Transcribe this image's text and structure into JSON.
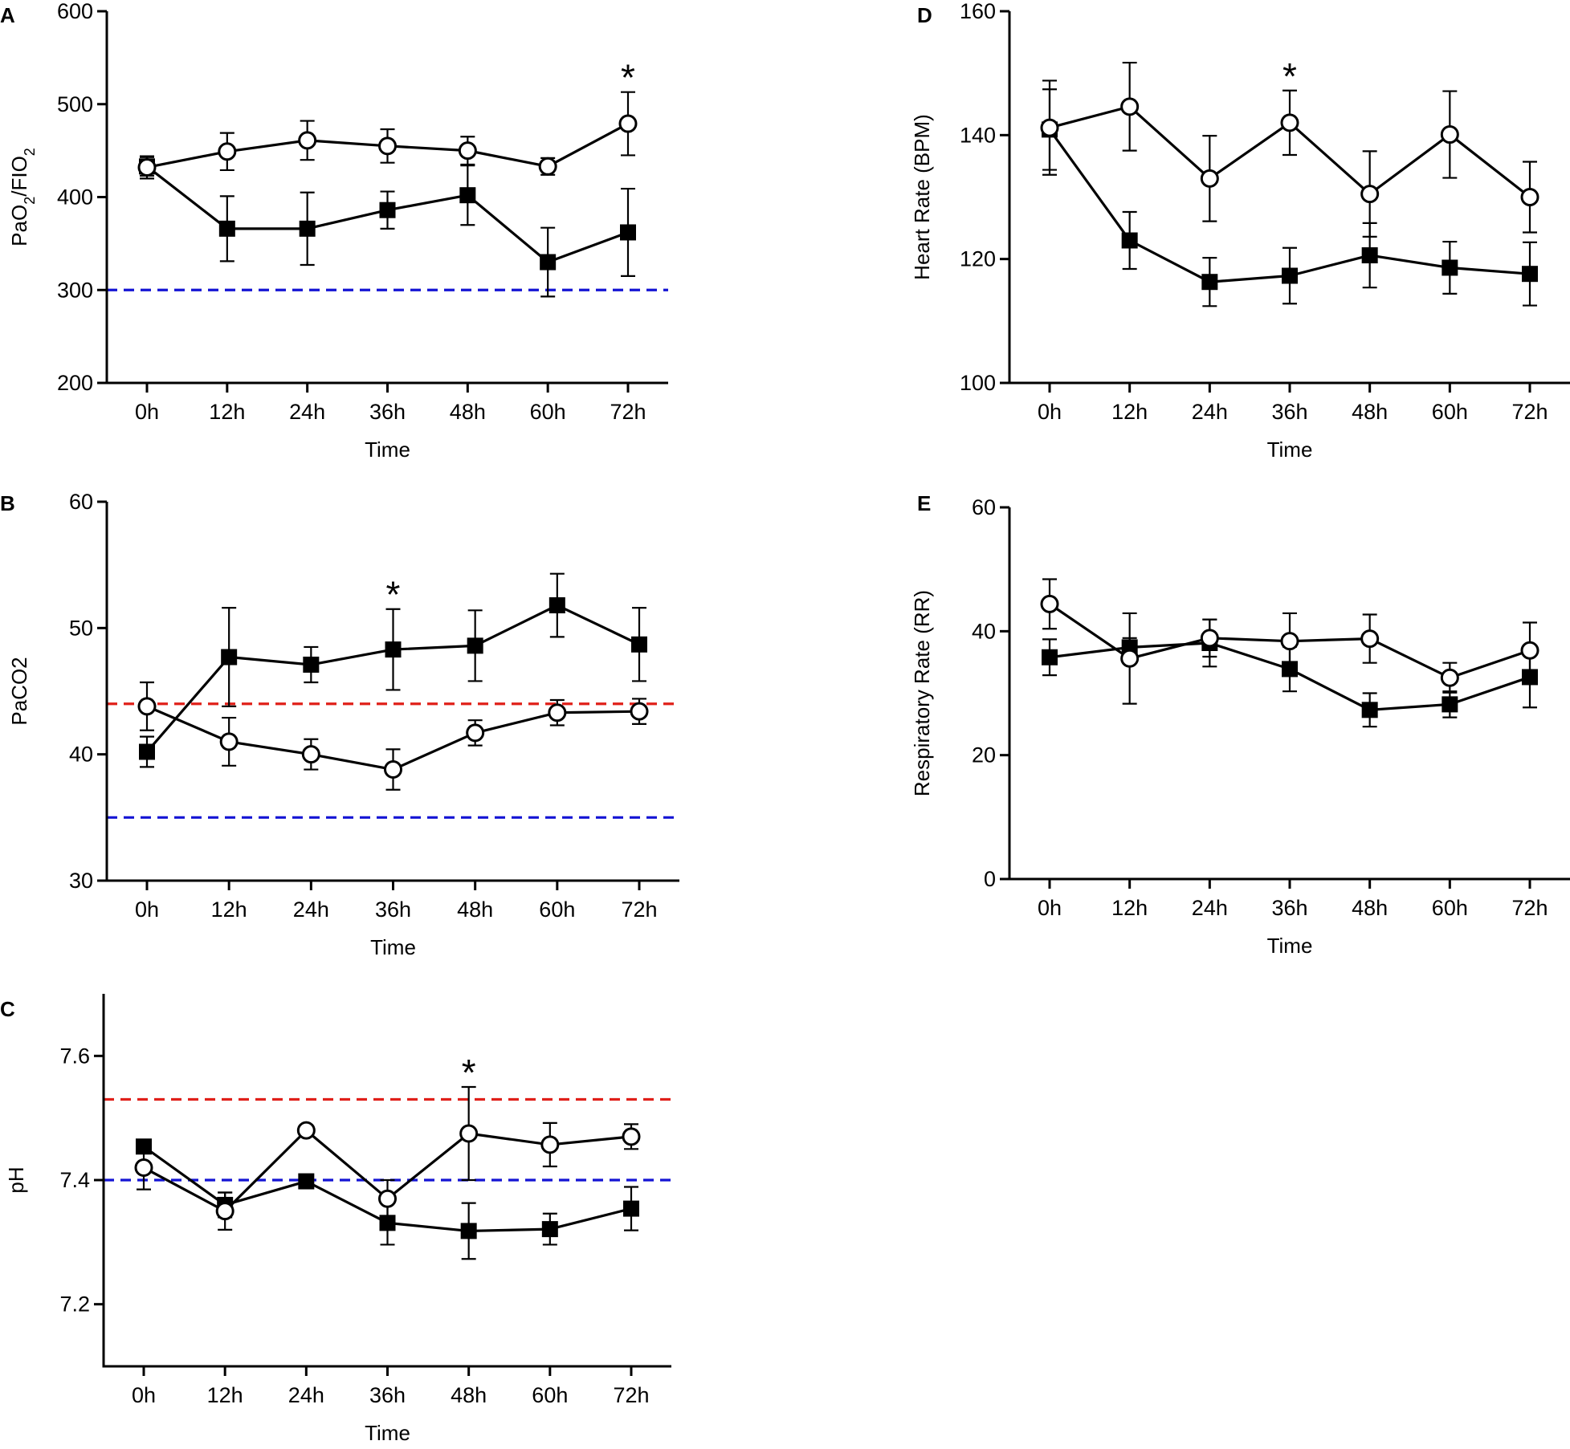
{
  "figure": {
    "background": "#ffffff",
    "line_color": "#000000"
  },
  "chart_data": [
    {
      "panel": "A",
      "type": "line",
      "ylabel": "PaO2/FIO2",
      "ylabel_parts": [
        "PaO",
        "2",
        "/FIO",
        "2"
      ],
      "xlabel": "Time",
      "categories": [
        "0h",
        "12h",
        "24h",
        "36h",
        "48h",
        "60h",
        "72h"
      ],
      "ylim": [
        200,
        600
      ],
      "yticks": [
        200,
        300,
        400,
        500,
        600
      ],
      "reference_lines": [
        {
          "value": 300,
          "color": "#1414d4"
        }
      ],
      "series": [
        {
          "name": "open circles",
          "marker": "circle-open",
          "values": [
            432,
            449,
            461,
            455,
            450,
            433,
            479
          ],
          "err_up": [
            12,
            20,
            21,
            18,
            15,
            9,
            34
          ],
          "err_down": [
            12,
            20,
            21,
            18,
            15,
            9,
            34
          ]
        },
        {
          "name": "filled squares",
          "marker": "square-filled",
          "values": [
            433,
            366,
            366,
            386,
            402,
            330,
            362
          ],
          "err_up": [
            10,
            35,
            39,
            20,
            32,
            37,
            47
          ],
          "err_down": [
            10,
            35,
            39,
            20,
            32,
            37,
            47
          ]
        }
      ],
      "annotations": [
        {
          "text": "*",
          "x_index": 6
        }
      ]
    },
    {
      "panel": "B",
      "type": "line",
      "ylabel": "PaCO2",
      "xlabel": "Time",
      "categories": [
        "0h",
        "12h",
        "24h",
        "36h",
        "48h",
        "60h",
        "72h"
      ],
      "ylim": [
        30,
        60
      ],
      "yticks": [
        30,
        40,
        50,
        60
      ],
      "reference_lines": [
        {
          "value": 44,
          "color": "#e0201a"
        },
        {
          "value": 35,
          "color": "#1414d4"
        }
      ],
      "series": [
        {
          "name": "open circles",
          "marker": "circle-open",
          "values": [
            43.8,
            41.0,
            40.0,
            38.8,
            41.7,
            43.3,
            43.4
          ],
          "err_up": [
            1.9,
            1.9,
            1.2,
            1.6,
            1.0,
            1.0,
            1.0
          ],
          "err_down": [
            1.9,
            1.9,
            1.2,
            1.6,
            1.0,
            1.0,
            1.0
          ]
        },
        {
          "name": "filled squares",
          "marker": "square-filled",
          "values": [
            40.2,
            47.7,
            47.1,
            48.3,
            48.6,
            51.8,
            48.7
          ],
          "err_up": [
            1.2,
            3.9,
            1.4,
            3.2,
            2.8,
            2.5,
            2.9
          ],
          "err_down": [
            1.2,
            3.9,
            1.4,
            3.2,
            2.8,
            2.5,
            2.9
          ]
        }
      ],
      "annotations": [
        {
          "text": "*",
          "x_index": 3
        }
      ]
    },
    {
      "panel": "C",
      "type": "line",
      "ylabel": "pH",
      "xlabel": "Time",
      "categories": [
        "0h",
        "12h",
        "24h",
        "36h",
        "48h",
        "60h",
        "72h"
      ],
      "ylim": [
        7.1,
        7.7
      ],
      "yticks": [
        7.2,
        7.4,
        7.6
      ],
      "reference_lines": [
        {
          "value": 7.53,
          "color": "#e0201a"
        },
        {
          "value": 7.4,
          "color": "#1414d4"
        }
      ],
      "series": [
        {
          "name": "open circles",
          "marker": "circle-open",
          "values": [
            7.42,
            7.35,
            7.48,
            7.37,
            7.475,
            7.457,
            7.47
          ],
          "err_up": [
            0.035,
            0.03,
            0.008,
            0.03,
            0.075,
            0.035,
            0.02
          ],
          "err_down": [
            0.035,
            0.03,
            0.008,
            0.03,
            0.075,
            0.035,
            0.02
          ]
        },
        {
          "name": "filled squares",
          "marker": "square-filled",
          "values": [
            7.454,
            7.36,
            7.398,
            7.331,
            7.318,
            7.321,
            7.354
          ],
          "err_up": [
            0.006,
            0.02,
            0.008,
            0.035,
            0.045,
            0.025,
            0.035
          ],
          "err_down": [
            0.006,
            0.02,
            0.008,
            0.035,
            0.045,
            0.025,
            0.035
          ]
        }
      ],
      "annotations": [
        {
          "text": "*",
          "x_index": 4
        }
      ]
    },
    {
      "panel": "D",
      "type": "line",
      "ylabel": "Heart Rate (BPM)",
      "xlabel": "Time",
      "categories": [
        "0h",
        "12h",
        "24h",
        "36h",
        "48h",
        "60h",
        "72h"
      ],
      "ylim": [
        100,
        160
      ],
      "yticks": [
        100,
        120,
        140,
        160
      ],
      "reference_lines": [],
      "series": [
        {
          "name": "open circles",
          "marker": "circle-open",
          "values": [
            141.2,
            144.6,
            133.0,
            142.0,
            130.5,
            140.1,
            130.0
          ],
          "err_up": [
            7.6,
            7.1,
            6.9,
            5.2,
            6.9,
            7.0,
            5.7
          ],
          "err_down": [
            7.6,
            7.1,
            6.9,
            5.2,
            6.9,
            7.0,
            5.7
          ]
        },
        {
          "name": "filled squares",
          "marker": "square-filled",
          "values": [
            140.9,
            123.0,
            116.3,
            117.3,
            120.6,
            118.6,
            117.6
          ],
          "err_up": [
            6.5,
            4.6,
            3.9,
            4.5,
            5.2,
            4.2,
            5.1
          ],
          "err_down": [
            6.5,
            4.6,
            3.9,
            4.5,
            5.2,
            4.2,
            5.1
          ]
        }
      ],
      "annotations": [
        {
          "text": "*",
          "x_index": 3
        }
      ]
    },
    {
      "panel": "E",
      "type": "line",
      "ylabel": "Respiratory Rate (RR)",
      "xlabel": "Time",
      "categories": [
        "0h",
        "12h",
        "24h",
        "36h",
        "48h",
        "60h",
        "72h"
      ],
      "ylim": [
        0,
        60
      ],
      "yticks": [
        0,
        20,
        40,
        60
      ],
      "reference_lines": [],
      "series": [
        {
          "name": "open circles",
          "marker": "circle-open",
          "values": [
            44.4,
            35.6,
            38.9,
            38.4,
            38.8,
            32.5,
            36.9
          ],
          "err_up": [
            4.0,
            7.3,
            3.0,
            4.5,
            3.9,
            2.4,
            4.5
          ],
          "err_down": [
            4.0,
            7.3,
            3.0,
            4.5,
            3.9,
            2.4,
            4.5
          ]
        },
        {
          "name": "filled squares",
          "marker": "square-filled",
          "values": [
            35.8,
            37.4,
            38.1,
            33.9,
            27.3,
            28.2,
            32.6
          ],
          "err_up": [
            2.9,
            1.5,
            3.8,
            3.6,
            2.7,
            2.1,
            4.9
          ],
          "err_down": [
            2.9,
            1.5,
            3.8,
            3.6,
            2.7,
            2.1,
            4.9
          ]
        }
      ],
      "annotations": []
    }
  ]
}
